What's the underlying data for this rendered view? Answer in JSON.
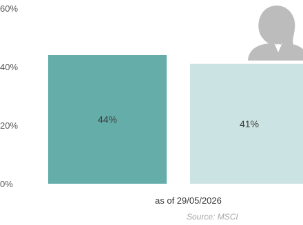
{
  "chart_data": {
    "type": "bar",
    "categories": [
      "",
      ""
    ],
    "values": [
      44,
      41
    ],
    "data_labels": [
      "44%",
      "41%"
    ],
    "ylim": [
      0,
      60
    ],
    "yticks": [
      0,
      20,
      40,
      60
    ],
    "ytick_labels": [
      "0%",
      "20%",
      "40%",
      "60%"
    ],
    "grid": false,
    "legend": "none",
    "colors": [
      "#64ada9",
      "#cbe3e2"
    ],
    "note": "as of 29/05/2026",
    "source": "Source: MSCI"
  },
  "icons": {
    "top_right": "woman-avatar-icon"
  },
  "icon_color": "#bcbcbc"
}
